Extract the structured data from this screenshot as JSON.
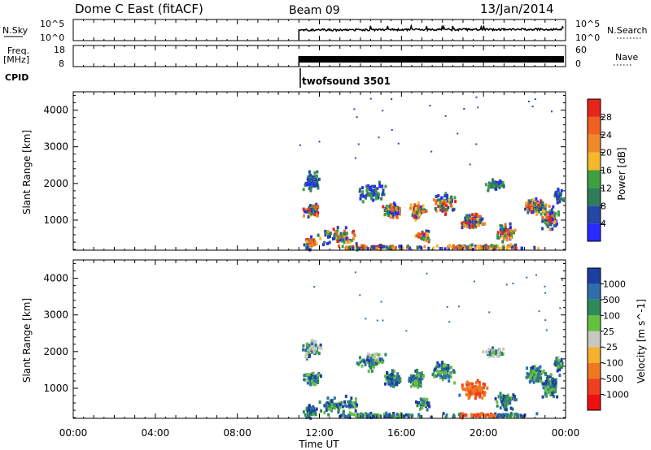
{
  "header": {
    "station": "Dome C East (fitACF)",
    "beam": "Beam 09",
    "date": "13/Jan/2014"
  },
  "left_labels": {
    "nsky": "N.Sky",
    "freq": "Freq.",
    "freq_unit": "[MHz]",
    "cpid": "CPID"
  },
  "right_labels": {
    "nsearch": "N.Search",
    "nave": "Nave"
  },
  "panel_ticks": {
    "noise_left_top": "10^5",
    "noise_left_bottom": "10^0",
    "noise_right_top": "10^5",
    "noise_right_bottom": "10^0",
    "freq_left_top": "18",
    "freq_left_bottom": "8",
    "nave_right_top": "60",
    "nave_right_bottom": "0"
  },
  "cpid_label": "twofsound 3501",
  "colors": {
    "power_scale": [
      "#2a2aff",
      "#2546a5",
      "#2e7d5a",
      "#3fa040",
      "#f5b82c",
      "#f08a28",
      "#f06020",
      "#e52618"
    ],
    "velocity_scale": [
      "#1c3fa0",
      "#2e6eaa",
      "#2e8a5a",
      "#66c040",
      "#c8c8c0",
      "#f6b030",
      "#f07820",
      "#ee4020",
      "#ee1010"
    ]
  },
  "chart_data": [
    {
      "type": "heatmap",
      "name": "power",
      "ylabel": "Slant Range [km]",
      "ylim": [
        180,
        4500
      ],
      "yticks": [
        "1000",
        "2000",
        "3000",
        "4000"
      ],
      "colorbar_label": "Power [dB]",
      "colorbar_ticks": [
        "4",
        "8",
        "12",
        "16",
        "20",
        "24",
        "28"
      ],
      "data_start_time": "11:00"
    },
    {
      "type": "heatmap",
      "name": "velocity",
      "ylabel": "Slant Range [km]",
      "ylim": [
        180,
        4500
      ],
      "yticks": [
        "1000",
        "2000",
        "3000",
        "4000"
      ],
      "colorbar_label": "Velocity [m s^-1]",
      "colorbar_ticks": [
        "1000",
        "500",
        "100",
        "25",
        "-25",
        "-100",
        "-500",
        "-1000"
      ],
      "data_start_time": "11:00"
    }
  ],
  "xaxis": {
    "label": "Time UT",
    "ticks": [
      "00:00",
      "04:00",
      "08:00",
      "12:00",
      "16:00",
      "20:00",
      "00:00"
    ]
  }
}
